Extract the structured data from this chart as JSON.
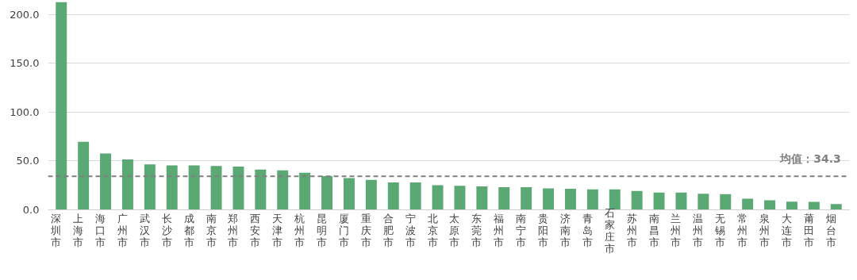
{
  "chart_data": {
    "type": "bar",
    "categories": [
      "深圳市",
      "上海市",
      "海口市",
      "广州市",
      "武汉市",
      "长沙市",
      "成都市",
      "南京市",
      "郑州市",
      "西安市",
      "天津市",
      "杭州市",
      "昆明市",
      "厦门市",
      "重庆市",
      "合肥市",
      "宁波市",
      "北京市",
      "太原市",
      "东莞市",
      "福州市",
      "南宁市",
      "贵阳市",
      "济南市",
      "青岛市",
      "石家庄市",
      "苏州市",
      "南昌市",
      "兰州市",
      "温州市",
      "无锡市",
      "常州市",
      "泉州市",
      "大连市",
      "莆田市",
      "烟台市"
    ],
    "values": [
      213,
      69.8,
      57.8,
      51.6,
      46.5,
      45.5,
      45.5,
      44.9,
      44.4,
      41.2,
      40.4,
      38.0,
      34.5,
      32.6,
      30.7,
      28.1,
      28.1,
      25.3,
      24.5,
      23.9,
      23.1,
      23.1,
      22.0,
      21.5,
      21.0,
      21.0,
      19.4,
      17.7,
      17.7,
      16.4,
      16.1,
      11.3,
      9.7,
      8.3,
      8.1,
      5.9
    ],
    "color": "#5aa873",
    "ylim": [
      0,
      213
    ],
    "yticks": [
      {
        "value": 0,
        "label": "0.0"
      },
      {
        "value": 50,
        "label": "50.0"
      },
      {
        "value": 100,
        "label": "100.0"
      },
      {
        "value": 150,
        "label": "150.0"
      },
      {
        "value": 200,
        "label": "200.0"
      }
    ],
    "grid": "y",
    "ref_lines": [
      {
        "axis": "y",
        "value": 34.3,
        "label": "均值：34.3",
        "color": "#808080",
        "line_style": "dashed"
      }
    ]
  }
}
